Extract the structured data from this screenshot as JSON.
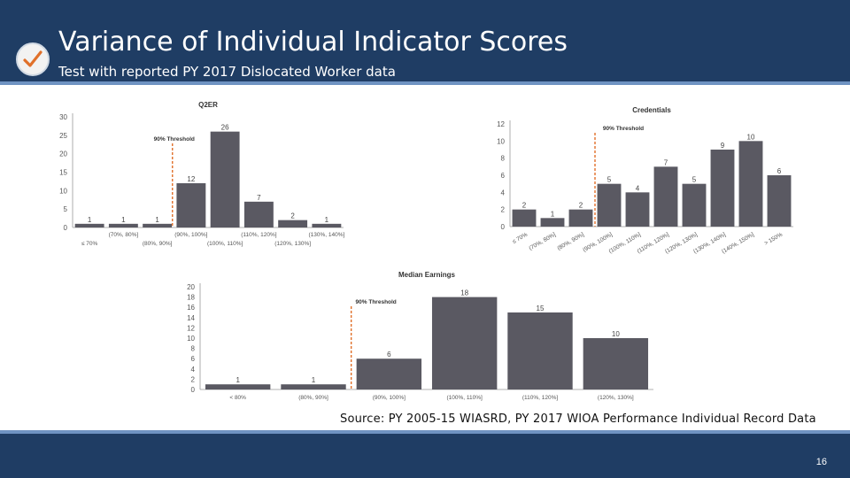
{
  "header": {
    "title": "Variance of Individual Indicator Scores",
    "subtitle": "Test with reported PY 2017 Dislocated Worker data",
    "logo_icon": "checkmark-icon"
  },
  "footer": {
    "source": "Source: PY 2005-15 WIASRD, PY 2017 WIOA Performance Individual Record Data",
    "page_number": "16"
  },
  "colors": {
    "bar": "#5a5962",
    "threshold": "#e0702a",
    "header_bg": "#1f3d64",
    "accent": "#6f93c2"
  },
  "chart_data": [
    {
      "type": "bar",
      "title": "Q2ER",
      "categories": [
        "≤ 70%",
        "(70%, 80%]",
        "(80%, 90%]",
        "(90%, 100%]",
        "(100%, 110%]",
        "(110%, 120%]",
        "(120%, 130%]",
        "(130%, 140%]"
      ],
      "values": [
        1,
        1,
        1,
        12,
        26,
        7,
        2,
        1
      ],
      "ylim": [
        0,
        30
      ],
      "yticks": [
        0,
        5,
        10,
        15,
        20,
        25,
        30
      ],
      "threshold_label": "90% Threshold",
      "threshold_after_index": 2,
      "grid": false
    },
    {
      "type": "bar",
      "title": "Credentials",
      "categories": [
        "≤ 70%",
        "(70%, 80%]",
        "(80%, 90%]",
        "(90%, 100%]",
        "(100%, 110%]",
        "(110%, 120%]",
        "(120%, 130%]",
        "(130%, 140%]",
        "(140%, 150%]",
        "> 150%"
      ],
      "values": [
        2,
        1,
        2,
        5,
        4,
        7,
        5,
        9,
        10,
        6
      ],
      "ylim": [
        0,
        12
      ],
      "yticks": [
        0,
        2,
        4,
        6,
        8,
        10,
        12
      ],
      "threshold_label": "90% Threshold",
      "threshold_after_index": 2,
      "grid": false
    },
    {
      "type": "bar",
      "title": "Median Earnings",
      "categories": [
        "< 80%",
        "(80%, 90%]",
        "(90%, 100%]",
        "(100%, 110%]",
        "(110%, 120%]",
        "(120%, 130%]"
      ],
      "values": [
        1,
        1,
        6,
        18,
        15,
        10
      ],
      "ylim": [
        0,
        20
      ],
      "yticks": [
        0,
        2,
        4,
        6,
        8,
        10,
        12,
        14,
        16,
        18,
        20
      ],
      "threshold_label": "90% Threshold",
      "threshold_after_index": 1,
      "grid": false
    }
  ]
}
